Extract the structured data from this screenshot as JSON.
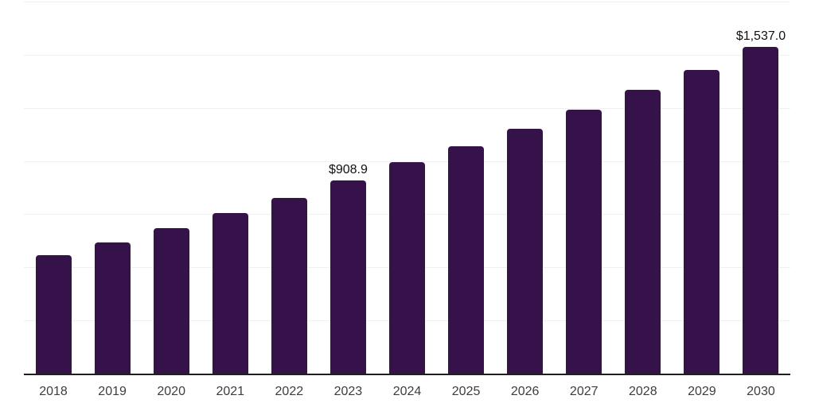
{
  "chart_data": {
    "type": "bar",
    "categories": [
      "2018",
      "2019",
      "2020",
      "2021",
      "2022",
      "2023",
      "2024",
      "2025",
      "2026",
      "2027",
      "2028",
      "2029",
      "2030"
    ],
    "values": [
      557,
      617,
      683,
      755,
      828,
      908.9,
      993,
      1068,
      1152,
      1241,
      1336,
      1428,
      1537.0
    ],
    "annotations": [
      {
        "category": "2023",
        "text": "$908.9"
      },
      {
        "category": "2030",
        "text": "$1,537.0"
      }
    ],
    "xlabel": "",
    "ylabel": "",
    "ylim": [
      0,
      1750
    ],
    "gridline_step": 250,
    "grid": true,
    "legend": false,
    "colors": {
      "bar": "#36124B",
      "gridline": "#F0F0F0",
      "axis": "#1F1F1F",
      "tick_label": "#3D3D3D",
      "value_label": "#111111",
      "background": "#FFFFFF"
    }
  }
}
